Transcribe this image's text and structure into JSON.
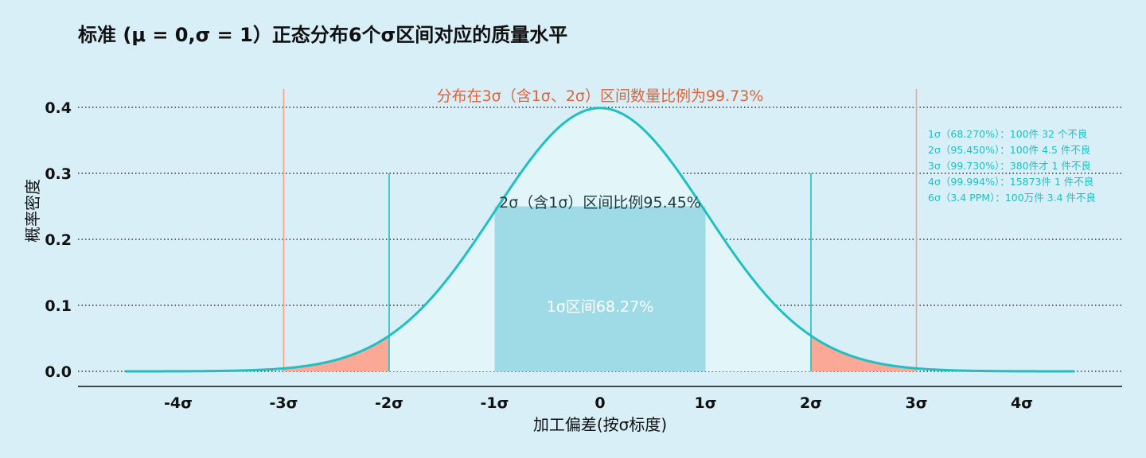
{
  "chart_data": {
    "type": "area",
    "title": "标准 (μ = 0,σ = 1）正态分布6个σ区间对应的质量水平",
    "xlabel": "加工偏差(按σ标度)",
    "ylabel": "概率密度",
    "xlim": [
      -4.5,
      4.5
    ],
    "ylim": [
      0,
      0.4
    ],
    "x_ticks": [
      -4,
      -3,
      -2,
      -1,
      0,
      1,
      2,
      3,
      4
    ],
    "x_tick_labels": [
      "-4σ",
      "-3σ",
      "-2σ",
      "-1σ",
      "0",
      "1σ",
      "2σ",
      "3σ",
      "4σ"
    ],
    "y_ticks": [
      0.0,
      0.1,
      0.2,
      0.3,
      0.4
    ],
    "y_tick_labels": [
      "0.0",
      "0.1",
      "0.2",
      "0.3",
      "0.4"
    ],
    "grid": "horizontal dotted",
    "series": [
      {
        "distribution": "normal",
        "mean": 0,
        "sd": 1
      }
    ],
    "shaded_regions": [
      {
        "from": -1,
        "to": 1,
        "color": "#9fdbe6"
      },
      {
        "from": -2,
        "to": 2,
        "color": "#e2f5f8"
      },
      {
        "from": -3,
        "to": -2,
        "color": "#fca896"
      },
      {
        "from": 2,
        "to": 3,
        "color": "#fca896"
      }
    ],
    "vertical_lines": [
      {
        "x": -3,
        "color": "#f4a08c",
        "to": "top"
      },
      {
        "x": 3,
        "color": "#f4a08c",
        "to": "top"
      },
      {
        "x": -2,
        "color": "#1fbfc2",
        "to": 0.3
      },
      {
        "x": 2,
        "color": "#1fbfc2",
        "to": 0.3
      }
    ],
    "annotations": {
      "three_sigma": "分布在3σ（含1σ、2σ）区间数量比例为99.73%",
      "two_sigma": "2σ（含1σ）区间比例95.45%",
      "one_sigma": "1σ区间68.27%"
    },
    "legend_notes": [
      "1σ（68.270%）：100件 32 个不良",
      "2σ（95.450%）：100件 4.5 件不良",
      "3σ（99.730%）：380件才 1 件不良",
      "4σ（99.994%）：15873件 1 件不良",
      "6σ（3.4 PPM）：100万件 3.4 件不良"
    ],
    "colors": {
      "background": "#d8eff7",
      "curve": "#1fbfc2",
      "one_sigma_fill": "#9fdbe6",
      "two_sigma_fill": "#e2f5f8",
      "tail_fill": "#fca896",
      "three_sigma_text": "#e0633a",
      "two_sigma_text": "#1a3a45",
      "one_sigma_text": "#ffffff",
      "notes_text": "#1fbfc2"
    }
  }
}
